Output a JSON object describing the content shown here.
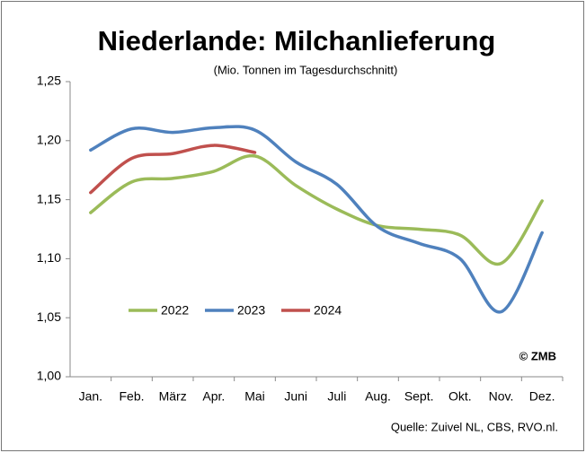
{
  "chart_data": {
    "type": "line",
    "title": "Niederlande: Milchanlieferung",
    "subtitle": "(Mio. Tonnen im Tagesdurchschnitt)",
    "categories": [
      "Jan.",
      "Feb.",
      "März",
      "Apr.",
      "Mai",
      "Juni",
      "Juli",
      "Aug.",
      "Sept.",
      "Okt.",
      "Nov.",
      "Dez."
    ],
    "series": [
      {
        "name": "2022",
        "color": "#9bbb59",
        "values": [
          1.139,
          1.165,
          1.168,
          1.174,
          1.187,
          1.162,
          1.142,
          1.128,
          1.125,
          1.12,
          1.096,
          1.149
        ]
      },
      {
        "name": "2023",
        "color": "#4f81bd",
        "values": [
          1.192,
          1.21,
          1.207,
          1.211,
          1.209,
          1.182,
          1.163,
          1.127,
          1.113,
          1.1,
          1.055,
          1.122
        ]
      },
      {
        "name": "2024",
        "color": "#c0504d",
        "values": [
          1.156,
          1.185,
          1.189,
          1.196,
          1.19,
          null,
          null,
          null,
          null,
          null,
          null,
          null
        ]
      }
    ],
    "ylim": [
      1.0,
      1.25
    ],
    "yticks": [
      {
        "value": 1.0,
        "label": "1,00"
      },
      {
        "value": 1.05,
        "label": "1,05"
      },
      {
        "value": 1.1,
        "label": "1,10"
      },
      {
        "value": 1.15,
        "label": "1,15"
      },
      {
        "value": 1.2,
        "label": "1,20"
      },
      {
        "value": 1.25,
        "label": "1,25"
      }
    ],
    "annotations": [
      "© ZMB",
      "Quelle:  Zuivel NL, CBS, RVO.nl."
    ]
  }
}
